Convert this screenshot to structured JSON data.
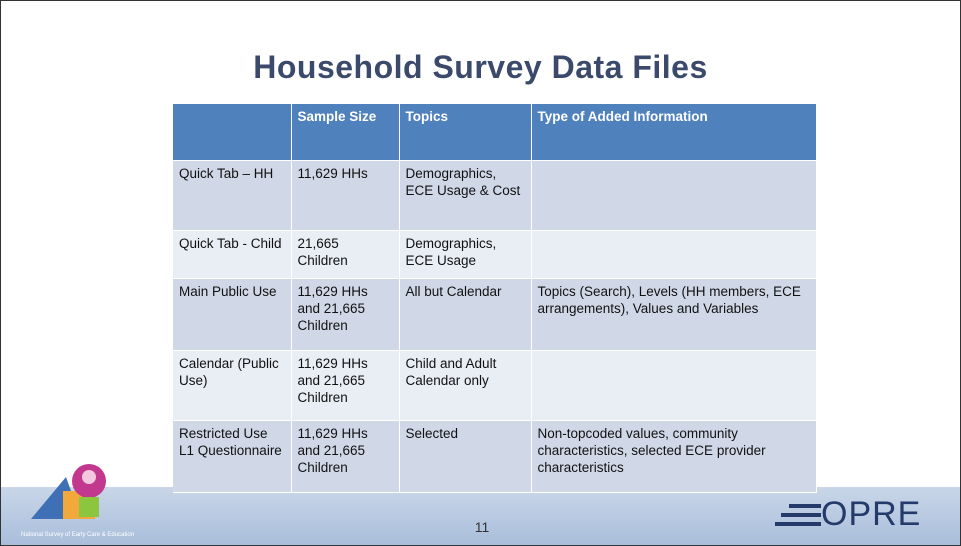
{
  "title": "Household Survey Data Files",
  "table": {
    "header": [
      "",
      "Sample Size",
      "Topics",
      "Type of Added Information"
    ],
    "rows": [
      [
        "Quick Tab – HH",
        "11,629 HHs",
        "Demographics, ECE Usage & Cost",
        ""
      ],
      [
        "Quick Tab - Child",
        "21,665 Children",
        "Demographics, ECE Usage",
        ""
      ],
      [
        "Main Public Use",
        "11,629 HHs and 21,665 Children",
        "All but Calendar",
        "Topics (Search), Levels (HH members, ECE arrangements), Values and Variables"
      ],
      [
        "Calendar (Public Use)",
        "11,629 HHs and 21,665 Children",
        "Child and Adult Calendar only",
        ""
      ],
      [
        "Restricted Use L1 Questionnaire",
        "11,629 HHs and 21,665 Children",
        "Selected",
        "Non-topcoded values, community characteristics, selected ECE provider characteristics"
      ]
    ]
  },
  "footer": {
    "caption": "National Survey of Early Care & Education",
    "page_number": "11",
    "logo": "OPRE"
  }
}
